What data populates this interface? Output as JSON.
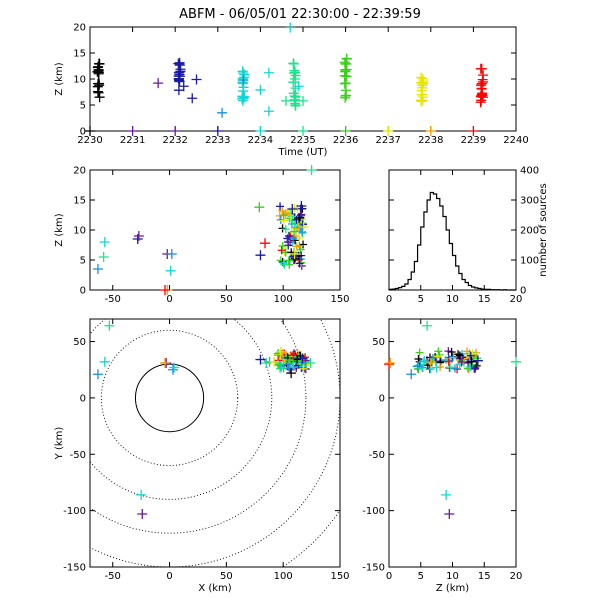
{
  "title": "ABFM - 06/05/01 22:30:00 - 22:39:59",
  "colors": [
    "#000000",
    "#6a1b9a",
    "#1a1aa8",
    "#1d8fe0",
    "#17d4d4",
    "#18e58a",
    "#3ad01a",
    "#e6e600",
    "#ff9e00",
    "#ff0000"
  ],
  "chart_data": [
    {
      "id": "time-height",
      "type": "scatter",
      "xlabel": "Time (UT)",
      "ylabel": "Z (km)",
      "xlim": [
        2230,
        2240
      ],
      "ylim": [
        0,
        20
      ],
      "xticks": [
        2230,
        2231,
        2232,
        2233,
        2234,
        2235,
        2236,
        2237,
        2238,
        2239,
        2240
      ],
      "yticks": [
        0,
        5,
        10,
        15,
        20
      ],
      "points": [
        [
          2231.6,
          9.2,
          1
        ],
        [
          2232.5,
          9.9,
          2
        ],
        [
          2232.2,
          8.6,
          2
        ],
        [
          2232.4,
          6.3,
          2
        ],
        [
          2233.1,
          3.5,
          3
        ],
        [
          2233.6,
          9.8,
          3
        ],
        [
          2234.0,
          7.9,
          4
        ],
        [
          2234.2,
          3.8,
          4
        ],
        [
          2234.7,
          19.9,
          4
        ],
        [
          2234.6,
          5.8,
          5
        ],
        [
          2235.0,
          5.8,
          5
        ],
        [
          2234.9,
          8.6,
          4
        ],
        [
          2234.2,
          11.2,
          4
        ],
        [
          2230,
          0,
          0
        ],
        [
          2231,
          0,
          1
        ],
        [
          2232,
          0,
          1
        ],
        [
          2233,
          0,
          2
        ],
        [
          2234,
          0,
          4
        ],
        [
          2235,
          0,
          5
        ],
        [
          2236,
          0,
          6
        ],
        [
          2237,
          0,
          7
        ],
        [
          2238,
          0,
          8
        ],
        [
          2239,
          0,
          9
        ]
      ],
      "columns": [
        {
          "x": 2230.2,
          "color": 0,
          "zmin": 6.5,
          "zmax": 13.5
        },
        {
          "x": 2232.1,
          "color": 2,
          "zmin": 7.5,
          "zmax": 13.5
        },
        {
          "x": 2233.6,
          "color": 4,
          "zmin": 5.8,
          "zmax": 11.5
        },
        {
          "x": 2234.8,
          "color": 5,
          "zmin": 4.8,
          "zmax": 14.0
        },
        {
          "x": 2236.0,
          "color": 6,
          "zmin": 4.5,
          "zmax": 14.0
        },
        {
          "x": 2237.8,
          "color": 7,
          "zmin": 5.5,
          "zmax": 10.5
        },
        {
          "x": 2239.2,
          "color": 9,
          "zmin": 5.5,
          "zmax": 12.0
        }
      ]
    },
    {
      "id": "x-height",
      "type": "scatter",
      "xlabel": "",
      "ylabel": "Z (km)",
      "xlim": [
        -70,
        150
      ],
      "ylim": [
        0,
        20
      ],
      "xticks": [
        -50,
        0,
        50,
        100,
        150
      ],
      "yticks": [
        0,
        5,
        10,
        15,
        20
      ],
      "points": [
        [
          -63,
          3.5,
          3
        ],
        [
          -58,
          5.5,
          5
        ],
        [
          -57,
          8,
          4
        ],
        [
          -28,
          8.5,
          2
        ],
        [
          -27,
          9,
          1
        ],
        [
          -2,
          6,
          1
        ],
        [
          2,
          6,
          3
        ],
        [
          1,
          3.2,
          4
        ],
        [
          -2,
          0,
          8
        ],
        [
          -4,
          0,
          9
        ],
        [
          79,
          13.8,
          6
        ],
        [
          80,
          5.8,
          2
        ],
        [
          84,
          7.8,
          9
        ],
        [
          108,
          13.5,
          2
        ],
        [
          116,
          14,
          2
        ],
        [
          114,
          12,
          0
        ],
        [
          125,
          20,
          5
        ],
        [
          118,
          10.5,
          7
        ],
        [
          110,
          6,
          7
        ]
      ],
      "cluster": {
        "x": [
          97,
          118
        ],
        "z": [
          4,
          14
        ]
      }
    },
    {
      "id": "source-histogram",
      "type": "line",
      "xlabel": "",
      "ylabel": "number of sources",
      "xlim": [
        0,
        20
      ],
      "ylim": [
        0,
        400
      ],
      "xticks": [
        0,
        5,
        10,
        15,
        20
      ],
      "yticks": [
        0,
        100,
        200,
        300,
        400
      ],
      "x": [
        0,
        0.5,
        1,
        1.5,
        2,
        2.5,
        3,
        3.5,
        4,
        4.5,
        5,
        5.5,
        6,
        6.5,
        7,
        7.5,
        8,
        8.5,
        9,
        9.5,
        10,
        10.5,
        11,
        11.5,
        12,
        12.5,
        13,
        13.5,
        14,
        14.5,
        15,
        15.5,
        16,
        16.5,
        17,
        17.5,
        18,
        18.5,
        19,
        19.5,
        20
      ],
      "values": [
        2,
        3,
        5,
        8,
        12,
        20,
        35,
        60,
        95,
        150,
        210,
        260,
        300,
        325,
        320,
        305,
        280,
        245,
        200,
        155,
        115,
        80,
        55,
        35,
        25,
        15,
        10,
        7,
        5,
        3,
        2,
        2,
        1,
        1,
        1,
        0,
        1,
        0,
        0,
        0,
        0
      ]
    },
    {
      "id": "plan-view",
      "type": "scatter",
      "xlabel": "X (km)",
      "ylabel": "Y (km)",
      "xlim": [
        -70,
        150
      ],
      "ylim": [
        -150,
        70
      ],
      "xticks": [
        -50,
        0,
        50,
        100,
        150
      ],
      "yticks": [
        -150,
        -100,
        -50,
        0,
        50
      ],
      "range_rings_km": [
        30,
        60,
        90,
        120,
        150,
        180
      ],
      "points": [
        [
          -53,
          64,
          5
        ],
        [
          -63,
          21,
          3
        ],
        [
          -57,
          32,
          4
        ],
        [
          -3,
          31,
          1
        ],
        [
          3,
          25,
          3
        ],
        [
          4,
          27,
          4
        ],
        [
          -25,
          -86,
          4
        ],
        [
          -24,
          -103,
          1
        ],
        [
          -4,
          31,
          8
        ],
        [
          80,
          34,
          2
        ],
        [
          85,
          31,
          4
        ],
        [
          88,
          32,
          6
        ],
        [
          124,
          31,
          5
        ],
        [
          92,
          32,
          7
        ],
        [
          98,
          41,
          7
        ],
        [
          117,
          35,
          2
        ],
        [
          107,
          22,
          0
        ]
      ],
      "cluster": {
        "x": [
          95,
          120
        ],
        "y": [
          25,
          40
        ]
      }
    },
    {
      "id": "z-plan",
      "type": "scatter",
      "xlabel": "Z (km)",
      "ylabel": "",
      "xlim": [
        0,
        20
      ],
      "ylim": [
        -150,
        70
      ],
      "xticks": [
        0,
        5,
        10,
        15,
        20
      ],
      "yticks": [
        -150,
        -100,
        -50,
        0,
        50
      ],
      "points": [
        [
          6,
          64,
          5
        ],
        [
          3.5,
          21,
          3
        ],
        [
          5.5,
          32,
          4
        ],
        [
          9,
          -86,
          4
        ],
        [
          9.5,
          -103,
          1
        ],
        [
          0,
          30,
          9
        ],
        [
          0.2,
          31,
          8
        ],
        [
          20,
          32,
          5
        ],
        [
          14,
          33,
          2
        ],
        [
          13,
          32,
          0
        ],
        [
          4.5,
          28,
          3
        ],
        [
          7.5,
          27,
          4
        ]
      ],
      "cluster": {
        "x": [
          4.5,
          14
        ],
        "y": [
          25,
          42
        ]
      }
    }
  ]
}
